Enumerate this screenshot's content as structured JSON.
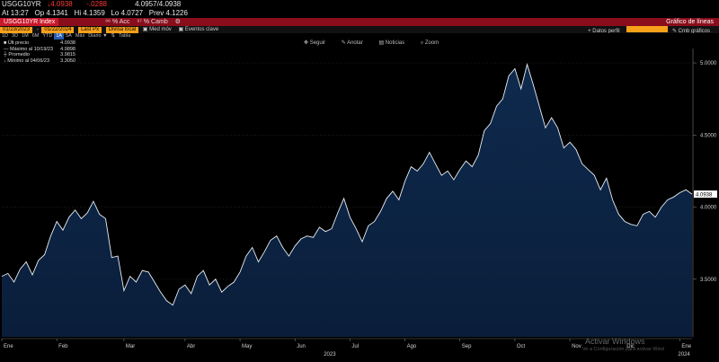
{
  "quote": {
    "ticker": "USGG10YR",
    "last": "↓4.0938",
    "change": "-.0288",
    "bidask": "4.0957/4.0938",
    "time_label": "At",
    "time": "13:27",
    "open_label": "Op",
    "open": "4.1341",
    "high_label": "Hi",
    "high": "4.1359",
    "low_label": "Lo",
    "low": "4.0727",
    "prev_label": "Prev",
    "prev": "4.1226"
  },
  "header": {
    "security": "USGG10YR Index",
    "title": "Gráfico de líneas",
    "menu1": "% Acc",
    "menu2": "% Camb"
  },
  "toolbar": {
    "start_date": "01/23/2023",
    "end_date": "01/22/2024",
    "field": "Last Px",
    "currency": "Divisa local",
    "avg": "Med móv",
    "events": "Eventos clave",
    "data_label": "Datos perfil",
    "chart_label": "Cmb gráficos"
  },
  "periods": {
    "items": [
      "1D",
      "3D",
      "1M",
      "6M",
      "YTD",
      "1A",
      "5A",
      "Máx",
      "Diario ▼",
      "⇅",
      "Tabla"
    ],
    "selected": 5
  },
  "nav": {
    "follow": "Seguir",
    "annotate": "Anotar",
    "news": "Noticias",
    "zoom": "Zoom"
  },
  "legend": [
    {
      "label": "Últ precio",
      "value": "4.0938"
    },
    {
      "label": "Máximo al 10/19/23",
      "value": "4.9898"
    },
    {
      "label": "Promedio",
      "value": "3.9815"
    },
    {
      "label": "Mínimo al 04/06/23",
      "value": "3.3050"
    }
  ],
  "chart_data": {
    "type": "area",
    "ylim": [
      3.1,
      5.1
    ],
    "yticks": [
      "5.0000",
      "4.5000",
      "4.0000",
      "3.5000"
    ],
    "ytick_values": [
      5.0,
      4.5,
      4.0,
      3.5
    ],
    "xticks": [
      "Ene",
      "Feb",
      "Mar",
      "Abr",
      "May",
      "Jun",
      "Jul",
      "Ago",
      "Sep",
      "Oct",
      "Nov",
      "Dic",
      "Ene"
    ],
    "xtick_pos": [
      0,
      9,
      20,
      30,
      39,
      48,
      57,
      66,
      75,
      84,
      93,
      102,
      111
    ],
    "year_labels": [
      {
        "label": "2023",
        "pos": 53
      },
      {
        "label": "2024",
        "pos": 111
      }
    ],
    "last_value_label": "4.0938",
    "values": [
      3.52,
      3.54,
      3.48,
      3.57,
      3.62,
      3.53,
      3.63,
      3.67,
      3.8,
      3.9,
      3.84,
      3.93,
      3.98,
      3.92,
      3.96,
      4.04,
      3.95,
      3.92,
      3.65,
      3.66,
      3.42,
      3.52,
      3.48,
      3.56,
      3.55,
      3.48,
      3.41,
      3.35,
      3.32,
      3.43,
      3.46,
      3.4,
      3.52,
      3.56,
      3.46,
      3.5,
      3.41,
      3.45,
      3.48,
      3.55,
      3.66,
      3.72,
      3.62,
      3.69,
      3.77,
      3.8,
      3.72,
      3.66,
      3.73,
      3.78,
      3.8,
      3.79,
      3.86,
      3.83,
      3.85,
      3.96,
      4.06,
      3.93,
      3.85,
      3.76,
      3.87,
      3.9,
      3.97,
      4.06,
      4.11,
      4.05,
      4.18,
      4.28,
      4.25,
      4.3,
      4.38,
      4.3,
      4.22,
      4.25,
      4.19,
      4.26,
      4.32,
      4.28,
      4.36,
      4.53,
      4.58,
      4.7,
      4.75,
      4.91,
      4.96,
      4.82,
      4.99,
      4.85,
      4.7,
      4.55,
      4.62,
      4.55,
      4.41,
      4.45,
      4.4,
      4.3,
      4.26,
      4.22,
      4.12,
      4.2,
      4.05,
      3.95,
      3.9,
      3.88,
      3.87,
      3.95,
      3.97,
      3.93,
      4.0,
      4.05,
      4.07,
      4.1,
      4.12,
      4.09
    ]
  },
  "watermark": {
    "line1": "Activar Windows",
    "line2": "Ve a Configuración para activar Wind"
  }
}
